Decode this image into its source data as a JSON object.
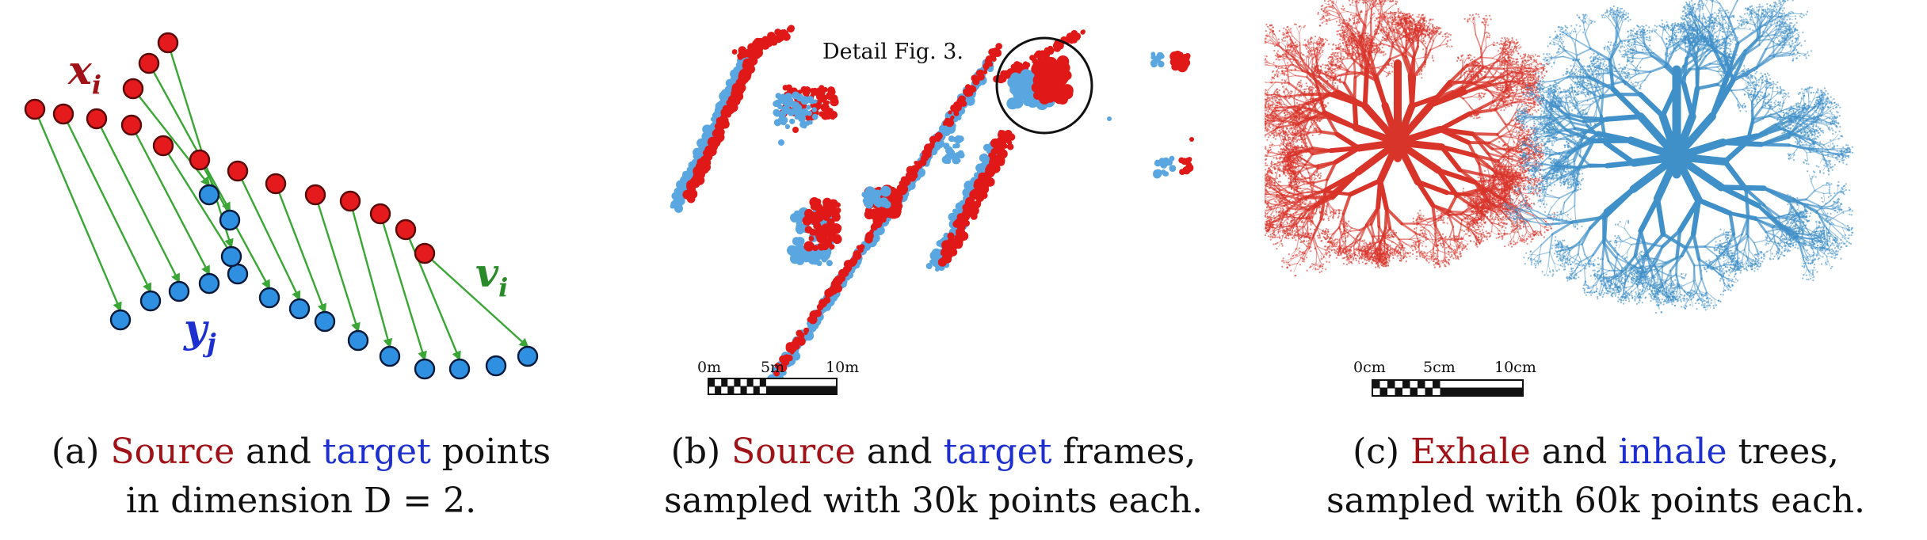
{
  "panel_a": {
    "labels": {
      "x": "x",
      "x_sub": "i",
      "y": "y",
      "y_sub": "j",
      "v": "v",
      "v_sub": "i"
    },
    "caption": {
      "letter": "(a)",
      "word1": "Source",
      "and": "and",
      "word2": "target",
      "rest": "points",
      "line2": "in dimension D = 2."
    },
    "colors": {
      "source": "#e41a1c",
      "target": "#2f8fe0",
      "arrow": "#3aa635"
    }
  },
  "panel_b": {
    "annotation": "Detail Fig. 3.",
    "scale_bar": {
      "labels": [
        "0m",
        "5m",
        "10m"
      ]
    },
    "caption": {
      "letter": "(b)",
      "word1": "Source",
      "and": "and",
      "word2": "target",
      "rest": "frames,",
      "line2": "sampled with 30k points each."
    }
  },
  "panel_c": {
    "scale_bar": {
      "labels": [
        "0cm",
        "5cm",
        "10cm"
      ]
    },
    "caption": {
      "letter": "(c)",
      "word1": "Exhale",
      "and": "and",
      "word2": "inhale",
      "rest": "trees,",
      "line2": "sampled with 60k points each."
    },
    "colors": {
      "exhale": "#d8342a",
      "inhale": "#3f8fc8"
    }
  }
}
